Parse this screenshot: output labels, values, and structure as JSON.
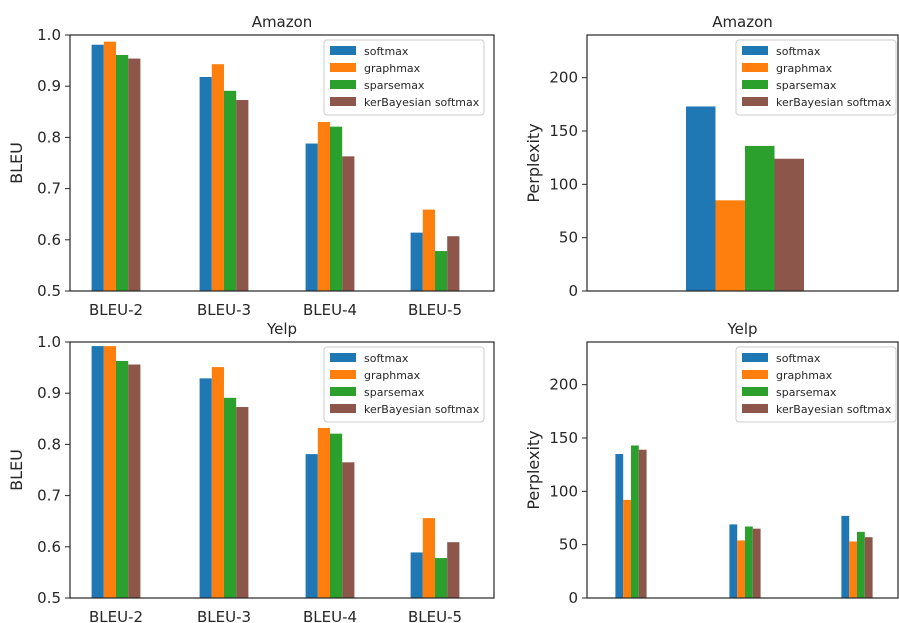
{
  "chart_data": [
    {
      "type": "bar",
      "title": "Amazon",
      "xlabel": "",
      "ylabel": "BLEU",
      "ylim": [
        0.5,
        1.0
      ],
      "yticks": [
        "0.5",
        "0.6",
        "0.7",
        "0.8",
        "0.9",
        "1.0"
      ],
      "categories": [
        "BLEU-2",
        "BLEU-3",
        "BLEU-4",
        "BLEU-5"
      ],
      "legend_position": "top-right",
      "series": [
        {
          "name": "softmax",
          "color": "#1f77b4",
          "values": [
            0.981,
            0.918,
            0.788,
            0.614
          ]
        },
        {
          "name": "graphmax",
          "color": "#ff7f0e",
          "values": [
            0.987,
            0.943,
            0.83,
            0.659
          ]
        },
        {
          "name": "sparsemax",
          "color": "#2ca02c",
          "values": [
            0.961,
            0.891,
            0.821,
            0.578
          ]
        },
        {
          "name": "kerBayesian softmax",
          "color": "#8c564b",
          "values": [
            0.954,
            0.873,
            0.763,
            0.607
          ]
        }
      ]
    },
    {
      "type": "bar",
      "title": "Amazon",
      "xlabel": "",
      "ylabel": "Perplexity",
      "ylim": [
        0,
        240
      ],
      "yticks": [
        "0",
        "50",
        "100",
        "150",
        "200"
      ],
      "categories": [
        ""
      ],
      "legend_position": "top-right",
      "series": [
        {
          "name": "softmax",
          "color": "#1f77b4",
          "values": [
            173
          ]
        },
        {
          "name": "graphmax",
          "color": "#ff7f0e",
          "values": [
            85
          ]
        },
        {
          "name": "sparsemax",
          "color": "#2ca02c",
          "values": [
            136
          ]
        },
        {
          "name": "kerBayesian softmax",
          "color": "#8c564b",
          "values": [
            124
          ]
        }
      ]
    },
    {
      "type": "bar",
      "title": "Yelp",
      "xlabel": "",
      "ylabel": "BLEU",
      "ylim": [
        0.5,
        1.0
      ],
      "yticks": [
        "0.5",
        "0.6",
        "0.7",
        "0.8",
        "0.9",
        "1.0"
      ],
      "categories": [
        "BLEU-2",
        "BLEU-3",
        "BLEU-4",
        "BLEU-5"
      ],
      "legend_position": "top-right",
      "series": [
        {
          "name": "softmax",
          "color": "#1f77b4",
          "values": [
            0.992,
            0.929,
            0.781,
            0.589
          ]
        },
        {
          "name": "graphmax",
          "color": "#ff7f0e",
          "values": [
            0.992,
            0.951,
            0.832,
            0.656
          ]
        },
        {
          "name": "sparsemax",
          "color": "#2ca02c",
          "values": [
            0.963,
            0.891,
            0.821,
            0.578
          ]
        },
        {
          "name": "kerBayesian softmax",
          "color": "#8c564b",
          "values": [
            0.956,
            0.873,
            0.765,
            0.609
          ]
        }
      ]
    },
    {
      "type": "bar",
      "title": "Yelp",
      "xlabel": "",
      "ylabel": "Perplexity",
      "ylim": [
        0,
        240
      ],
      "yticks": [
        "0",
        "50",
        "100",
        "150",
        "200"
      ],
      "categories": [
        "",
        "",
        ""
      ],
      "legend_position": "top-right",
      "series": [
        {
          "name": "softmax",
          "color": "#1f77b4",
          "values": [
            135,
            69,
            77
          ]
        },
        {
          "name": "graphmax",
          "color": "#ff7f0e",
          "values": [
            92,
            54,
            53
          ]
        },
        {
          "name": "sparsemax",
          "color": "#2ca02c",
          "values": [
            143,
            67,
            62
          ]
        },
        {
          "name": "kerBayesian softmax",
          "color": "#8c564b",
          "values": [
            139,
            65,
            57
          ]
        }
      ]
    }
  ]
}
